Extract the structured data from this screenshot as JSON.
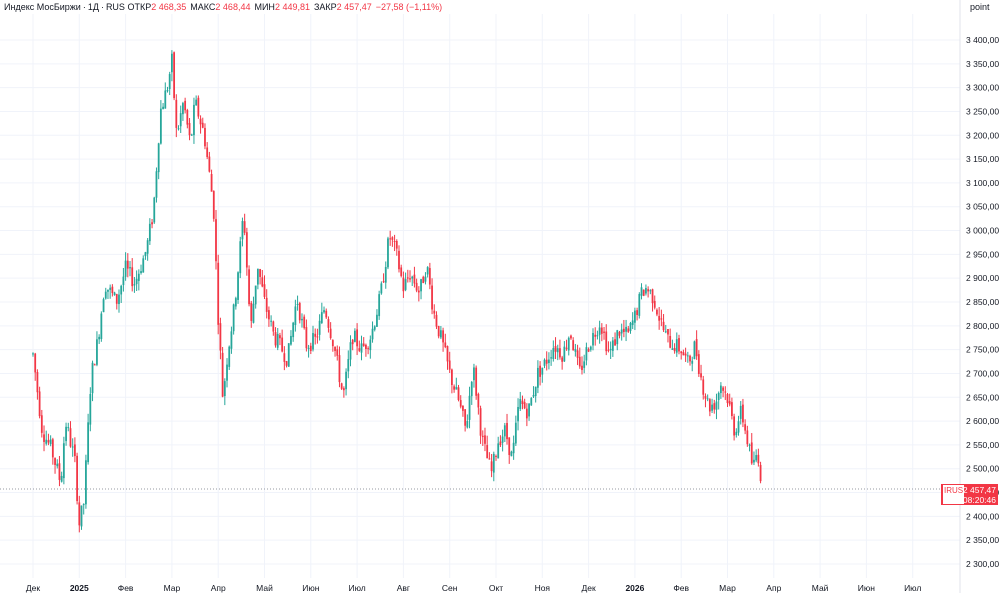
{
  "legend": {
    "symbol_name": "Индекс МосБиржи",
    "timeframe": "1Д",
    "exchange": "RUS",
    "open_label": "ОТКР",
    "open_value": "2 468,35",
    "high_label": "МАКС",
    "high_value": "2 468,44",
    "low_label": "МИН",
    "low_value": "2 449,81",
    "close_label": "ЗАКР",
    "close_value": "2 457,47",
    "change": "−27,58 (−1,11%)"
  },
  "price_axis": {
    "unit": "point",
    "ticks": [
      "3 400,00",
      "3 350,00",
      "3 300,00",
      "3 250,00",
      "3 200,00",
      "3 150,00",
      "3 100,00",
      "3 050,00",
      "3 000,00",
      "2 950,00",
      "2 900,00",
      "2 850,00",
      "2 800,00",
      "2 750,00",
      "2 700,00",
      "2 650,00",
      "2 600,00",
      "2 550,00",
      "2 500,00",
      "2 450,00",
      "2 400,00",
      "2 350,00",
      "2 300,00"
    ],
    "tick_values": [
      3400,
      3350,
      3300,
      3250,
      3200,
      3150,
      3100,
      3050,
      3000,
      2950,
      2900,
      2850,
      2800,
      2750,
      2700,
      2650,
      2600,
      2550,
      2500,
      2450,
      2400,
      2350,
      2300
    ],
    "range": [
      2290,
      3450
    ]
  },
  "time_axis": {
    "labels": [
      {
        "text": "Дек",
        "bold": false
      },
      {
        "text": "2025",
        "bold": true
      },
      {
        "text": "Фев",
        "bold": false
      },
      {
        "text": "Мар",
        "bold": false
      },
      {
        "text": "Апр",
        "bold": false
      },
      {
        "text": "Май",
        "bold": false
      },
      {
        "text": "Июн",
        "bold": false
      },
      {
        "text": "Июл",
        "bold": false
      },
      {
        "text": "Авг",
        "bold": false
      },
      {
        "text": "Сен",
        "bold": false
      },
      {
        "text": "Окт",
        "bold": false
      },
      {
        "text": "Ноя",
        "bold": false
      },
      {
        "text": "Дек",
        "bold": false
      },
      {
        "text": "2026",
        "bold": true
      },
      {
        "text": "Фев",
        "bold": false
      },
      {
        "text": "Мар",
        "bold": false
      },
      {
        "text": "Апр",
        "bold": false
      },
      {
        "text": "Май",
        "bold": false
      },
      {
        "text": "Июн",
        "bold": false
      },
      {
        "text": "Июл",
        "bold": false
      }
    ]
  },
  "last_price": {
    "symbol": "IRUS",
    "value": "2 457,47",
    "price": 2457.47,
    "countdown": "08:20:46"
  },
  "colors": {
    "up": "#26a69a",
    "down": "#f23645",
    "grid": "#f0f3fa",
    "axis_text": "#131722"
  },
  "series_shape": {
    "anchors": [
      {
        "month": 0.0,
        "price": 2740
      },
      {
        "month": 0.2,
        "price": 2580
      },
      {
        "month": 0.4,
        "price": 2540
      },
      {
        "month": 0.6,
        "price": 2470
      },
      {
        "month": 0.7,
        "price": 2600
      },
      {
        "month": 0.9,
        "price": 2520
      },
      {
        "month": 1.0,
        "price": 2385
      },
      {
        "month": 1.1,
        "price": 2430
      },
      {
        "month": 1.25,
        "price": 2690
      },
      {
        "month": 1.4,
        "price": 2770
      },
      {
        "month": 1.55,
        "price": 2890
      },
      {
        "month": 1.8,
        "price": 2850
      },
      {
        "month": 2.0,
        "price": 2920
      },
      {
        "month": 2.2,
        "price": 2890
      },
      {
        "month": 2.45,
        "price": 2960
      },
      {
        "month": 2.6,
        "price": 3040
      },
      {
        "month": 2.75,
        "price": 3250
      },
      {
        "month": 2.9,
        "price": 3300
      },
      {
        "month": 3.0,
        "price": 3355
      },
      {
        "month": 3.1,
        "price": 3200
      },
      {
        "month": 3.25,
        "price": 3270
      },
      {
        "month": 3.4,
        "price": 3180
      },
      {
        "month": 3.5,
        "price": 3270
      },
      {
        "month": 3.7,
        "price": 3200
      },
      {
        "month": 3.9,
        "price": 3050
      },
      {
        "month": 4.0,
        "price": 2820
      },
      {
        "month": 4.1,
        "price": 2650
      },
      {
        "month": 4.2,
        "price": 2740
      },
      {
        "month": 4.35,
        "price": 2840
      },
      {
        "month": 4.55,
        "price": 3040
      },
      {
        "month": 4.7,
        "price": 2790
      },
      {
        "month": 4.85,
        "price": 2930
      },
      {
        "month": 5.0,
        "price": 2850
      },
      {
        "month": 5.2,
        "price": 2780
      },
      {
        "month": 5.5,
        "price": 2730
      },
      {
        "month": 5.7,
        "price": 2860
      },
      {
        "month": 5.9,
        "price": 2760
      },
      {
        "month": 6.1,
        "price": 2770
      },
      {
        "month": 6.3,
        "price": 2840
      },
      {
        "month": 6.5,
        "price": 2760
      },
      {
        "month": 6.7,
        "price": 2650
      },
      {
        "month": 6.9,
        "price": 2780
      },
      {
        "month": 7.1,
        "price": 2750
      },
      {
        "month": 7.3,
        "price": 2780
      },
      {
        "month": 7.5,
        "price": 2860
      },
      {
        "month": 7.7,
        "price": 2990
      },
      {
        "month": 7.85,
        "price": 2950
      },
      {
        "month": 8.0,
        "price": 2880
      },
      {
        "month": 8.15,
        "price": 2910
      },
      {
        "month": 8.35,
        "price": 2870
      },
      {
        "month": 8.5,
        "price": 2930
      },
      {
        "month": 8.65,
        "price": 2830
      },
      {
        "month": 8.85,
        "price": 2760
      },
      {
        "month": 9.0,
        "price": 2700
      },
      {
        "month": 9.2,
        "price": 2640
      },
      {
        "month": 9.35,
        "price": 2580
      },
      {
        "month": 9.5,
        "price": 2720
      },
      {
        "month": 9.7,
        "price": 2560
      },
      {
        "month": 9.9,
        "price": 2490
      },
      {
        "month": 10.05,
        "price": 2560
      },
      {
        "month": 10.2,
        "price": 2580
      },
      {
        "month": 10.35,
        "price": 2520
      },
      {
        "month": 10.5,
        "price": 2640
      },
      {
        "month": 10.7,
        "price": 2620
      },
      {
        "month": 10.9,
        "price": 2700
      },
      {
        "month": 11.05,
        "price": 2720
      },
      {
        "month": 11.25,
        "price": 2760
      },
      {
        "month": 11.45,
        "price": 2740
      },
      {
        "month": 11.6,
        "price": 2790
      },
      {
        "month": 11.8,
        "price": 2700
      },
      {
        "month": 12.0,
        "price": 2760
      },
      {
        "month": 12.25,
        "price": 2810
      },
      {
        "month": 12.45,
        "price": 2740
      },
      {
        "month": 12.65,
        "price": 2790
      },
      {
        "month": 12.85,
        "price": 2780
      },
      {
        "month": 13.0,
        "price": 2820
      },
      {
        "month": 13.15,
        "price": 2870
      },
      {
        "month": 13.25,
        "price": 2880
      },
      {
        "month": 13.4,
        "price": 2860
      },
      {
        "month": 13.55,
        "price": 2810
      },
      {
        "month": 13.7,
        "price": 2770
      },
      {
        "month": 13.85,
        "price": 2760
      },
      {
        "month": 14.0,
        "price": 2750
      },
      {
        "month": 14.15,
        "price": 2720
      },
      {
        "month": 14.3,
        "price": 2760
      },
      {
        "month": 14.45,
        "price": 2680
      },
      {
        "month": 14.6,
        "price": 2630
      },
      {
        "month": 14.75,
        "price": 2640
      },
      {
        "month": 14.85,
        "price": 2680
      },
      {
        "month": 15.0,
        "price": 2650
      },
      {
        "month": 15.15,
        "price": 2580
      },
      {
        "month": 15.3,
        "price": 2620
      },
      {
        "month": 15.45,
        "price": 2550
      },
      {
        "month": 15.55,
        "price": 2500
      },
      {
        "month": 15.65,
        "price": 2540
      },
      {
        "month": 15.75,
        "price": 2457
      }
    ]
  }
}
